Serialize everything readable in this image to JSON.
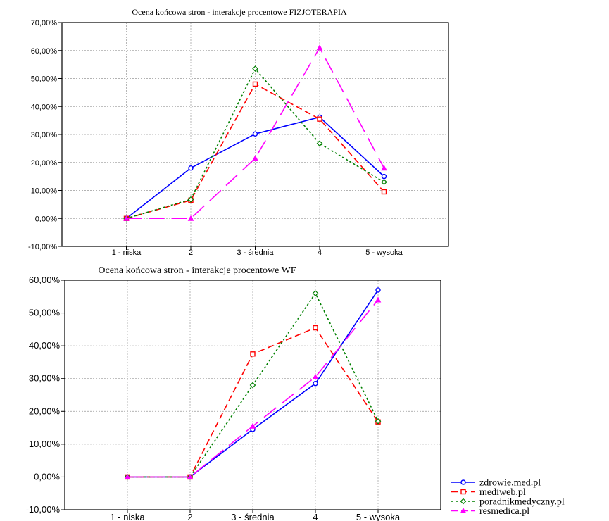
{
  "chart_data": [
    {
      "type": "line",
      "title": "Ocena końcowa stron - interakcje procentowe FIZJOTERAPIA",
      "categories": [
        "1 - niska",
        "2",
        "3 - średnia",
        "4",
        "5 - wysoka"
      ],
      "y_ticks": [
        "-10,00%",
        "0,00%",
        "10,00%",
        "20,00%",
        "30,00%",
        "40,00%",
        "50,00%",
        "60,00%",
        "70,00%"
      ],
      "ylim": [
        -10,
        70
      ],
      "grid": true,
      "series": [
        {
          "name": "zdrowie.med.pl",
          "color": "#0000ff",
          "values": [
            0,
            18,
            30.2,
            36.2,
            15
          ]
        },
        {
          "name": "mediweb.pl",
          "color": "#ff0000",
          "values": [
            0,
            6.5,
            48,
            35.5,
            9.5
          ]
        },
        {
          "name": "poradnikmedyczny.pl",
          "color": "#008000",
          "values": [
            0,
            6.8,
            53.5,
            26.8,
            13
          ]
        },
        {
          "name": "resmedica.pl",
          "color": "#ff00ff",
          "values": [
            0,
            0,
            21.5,
            61,
            18
          ]
        }
      ]
    },
    {
      "type": "line",
      "title": "Ocena końcowa stron - interakcje procentowe WF",
      "categories": [
        "1 - niska",
        "2",
        "3 - średnia",
        "4",
        "5 - wysoka"
      ],
      "y_ticks": [
        "-10,00%",
        "0,00%",
        "10,00%",
        "20,00%",
        "30,00%",
        "40,00%",
        "50,00%",
        "60,00%"
      ],
      "ylim": [
        -10,
        60
      ],
      "grid": true,
      "legend": "bottom-right",
      "series": [
        {
          "name": "zdrowie.med.pl",
          "color": "#0000ff",
          "values": [
            0,
            0,
            14.5,
            28.5,
            57
          ]
        },
        {
          "name": "mediweb.pl",
          "color": "#ff0000",
          "values": [
            0,
            0,
            37.5,
            45.5,
            16.8
          ]
        },
        {
          "name": "poradnikmedyczny.pl",
          "color": "#008000",
          "values": [
            0,
            0,
            28,
            56,
            17
          ]
        },
        {
          "name": "resmedica.pl",
          "color": "#ff00ff",
          "values": [
            0,
            0,
            15.5,
            30.5,
            54
          ]
        }
      ]
    }
  ]
}
